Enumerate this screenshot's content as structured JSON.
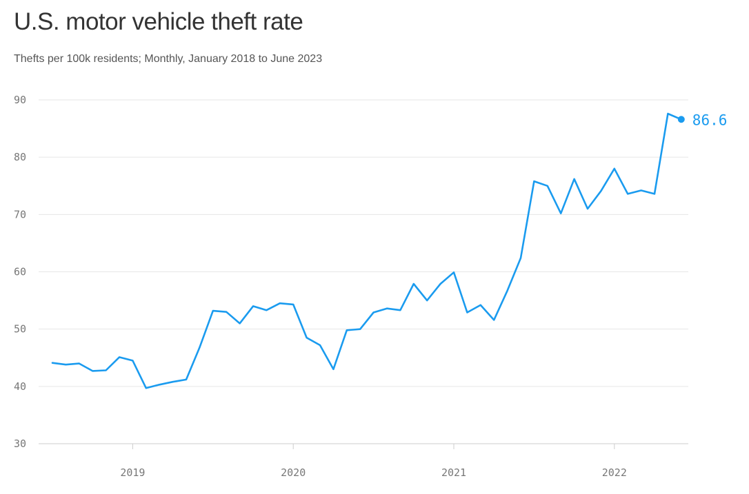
{
  "title": "U.S. motor vehicle theft rate",
  "subtitle": "Thefts per 100k residents; Monthly, January 2018 to June 2023",
  "colors": {
    "line": "#1a9bef",
    "grid": "#e6e6e6",
    "axis": "#cccccc",
    "tick_text": "#777777"
  },
  "chart_data": {
    "type": "line",
    "title": "U.S. motor vehicle theft rate",
    "subtitle": "Thefts per 100k residents; Monthly, January 2018 to June 2023",
    "xlabel": "",
    "ylabel": "",
    "ylim": [
      30,
      90
    ],
    "yticks": [
      30,
      40,
      50,
      60,
      70,
      80,
      90
    ],
    "xlim": [
      "2018-07",
      "2022-06"
    ],
    "xticks": [
      {
        "date": "2019-01",
        "label": "2019"
      },
      {
        "date": "2020-01",
        "label": "2020"
      },
      {
        "date": "2021-01",
        "label": "2021"
      },
      {
        "date": "2022-01",
        "label": "2022"
      }
    ],
    "grid": "horizontal",
    "x": [
      "2018-07",
      "2018-08",
      "2018-09",
      "2018-10",
      "2018-11",
      "2018-12",
      "2019-01",
      "2019-02",
      "2019-03",
      "2019-04",
      "2019-05",
      "2019-06",
      "2019-07",
      "2019-08",
      "2019-09",
      "2019-10",
      "2019-11",
      "2019-12",
      "2020-01",
      "2020-02",
      "2020-03",
      "2020-04",
      "2020-05",
      "2020-06",
      "2020-07",
      "2020-08",
      "2020-09",
      "2020-10",
      "2020-11",
      "2020-12",
      "2021-01",
      "2021-02",
      "2021-03",
      "2021-04",
      "2021-05",
      "2021-06",
      "2021-07",
      "2021-08",
      "2021-09",
      "2021-10",
      "2021-11",
      "2021-12",
      "2022-01",
      "2022-02",
      "2022-03",
      "2022-04",
      "2022-05",
      "2022-06"
    ],
    "series": [
      {
        "name": "",
        "values": [
          44.1,
          43.8,
          44.0,
          42.7,
          42.8,
          45.1,
          44.5,
          39.7,
          40.3,
          40.8,
          41.2,
          46.8,
          53.2,
          53.0,
          51.0,
          54.0,
          53.3,
          54.5,
          54.3,
          48.5,
          47.2,
          43.0,
          49.8,
          50.0,
          52.9,
          53.6,
          53.3,
          57.9,
          55.0,
          57.9,
          59.9,
          52.9,
          54.2,
          51.6,
          56.7,
          62.4,
          75.8,
          75.0,
          70.2,
          76.2,
          71.0,
          74.1,
          78.0,
          73.6,
          74.2,
          73.6,
          87.6,
          86.6
        ]
      }
    ],
    "end_label": "86.6"
  }
}
